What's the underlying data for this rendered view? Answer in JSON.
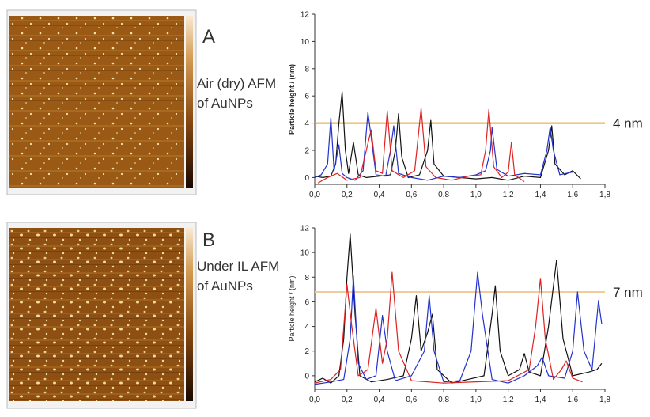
{
  "panels": [
    {
      "label": "A",
      "caption": [
        "Air (dry) AFM",
        "of AuNPs"
      ]
    },
    {
      "label": "B",
      "caption": [
        "Under IL AFM",
        "of AuNPs"
      ]
    }
  ],
  "chart_data": [
    {
      "type": "line",
      "y_label": "Particle height / (nm)",
      "xlim": [
        0,
        1.8
      ],
      "ylim": [
        -0.5,
        12
      ],
      "xticks": [
        {
          "value": 0,
          "label": "0,0"
        },
        {
          "value": 0.2,
          "label": "0,2"
        },
        {
          "value": 0.4,
          "label": "0,4"
        },
        {
          "value": 0.6,
          "label": "0,6"
        },
        {
          "value": 0.8,
          "label": "0,8"
        },
        {
          "value": 1.0,
          "label": "1,0"
        },
        {
          "value": 1.2,
          "label": "1,2"
        },
        {
          "value": 1.4,
          "label": "1,4"
        },
        {
          "value": 1.6,
          "label": "1,6"
        },
        {
          "value": 1.8,
          "label": "1,8"
        }
      ],
      "yticks": [
        0,
        2,
        4,
        6,
        8,
        10,
        12
      ],
      "reference_line": {
        "value": 4,
        "label": "4 nm",
        "color": "#e8a030"
      },
      "series": [
        {
          "color": "#111111",
          "x": [
            0,
            0.05,
            0.1,
            0.13,
            0.15,
            0.17,
            0.19,
            0.21,
            0.24,
            0.27,
            0.32,
            0.4,
            0.47,
            0.5,
            0.52,
            0.54,
            0.58,
            0.65,
            0.7,
            0.72,
            0.74,
            0.8,
            0.9,
            1.0,
            1.1,
            1.2,
            1.3,
            1.4,
            1.45,
            1.47,
            1.49,
            1.55,
            1.6,
            1.65
          ],
          "values": [
            0.1,
            0,
            0.1,
            1,
            4,
            6.3,
            2,
            0.3,
            2.6,
            0.2,
            0,
            0.1,
            0.2,
            2,
            4.7,
            1.5,
            0,
            0.2,
            2,
            4.2,
            1,
            0.1,
            0,
            -0.1,
            0,
            -0.2,
            0.1,
            0,
            2,
            3.8,
            1,
            0.2,
            0.5,
            -0.1
          ]
        },
        {
          "color": "#2233cc",
          "x": [
            0,
            0.04,
            0.08,
            0.1,
            0.12,
            0.15,
            0.17,
            0.2,
            0.25,
            0.3,
            0.33,
            0.35,
            0.38,
            0.44,
            0.47,
            0.49,
            0.52,
            0.6,
            0.7,
            0.8,
            0.9,
            1.0,
            1.06,
            1.09,
            1.1,
            1.13,
            1.2,
            1.3,
            1.4,
            1.44,
            1.46,
            1.48,
            1.52,
            1.6
          ],
          "values": [
            0,
            0.2,
            1,
            4.4,
            0.5,
            2.4,
            0.3,
            0,
            -0.2,
            0.5,
            4.8,
            3,
            0.2,
            0.1,
            2,
            3.8,
            0.3,
            0,
            -0.2,
            0.1,
            0,
            0.2,
            0.5,
            2,
            3.7,
            0.6,
            0.1,
            0.3,
            0.2,
            2,
            3.7,
            2,
            0.2,
            0.4
          ]
        },
        {
          "color": "#dd2222",
          "x": [
            0.02,
            0.08,
            0.14,
            0.2,
            0.28,
            0.32,
            0.35,
            0.38,
            0.42,
            0.45,
            0.48,
            0.55,
            0.62,
            0.66,
            0.69,
            0.75,
            0.85,
            0.95,
            1.03,
            1.06,
            1.08,
            1.11,
            1.16,
            1.2,
            1.22,
            1.24,
            1.3
          ],
          "values": [
            -0.4,
            0,
            0.3,
            -0.2,
            0,
            2,
            3.5,
            0.5,
            0.3,
            4.9,
            0.5,
            0,
            0.5,
            5.1,
            0.8,
            0,
            -0.2,
            0.1,
            0.2,
            2,
            5,
            0.8,
            0,
            0.4,
            2.6,
            0.2,
            -0.3
          ]
        }
      ]
    },
    {
      "type": "line",
      "y_label": "Particle height / (nm)",
      "xlim": [
        0,
        1.8
      ],
      "ylim": [
        -1.1,
        12
      ],
      "xticks": [
        {
          "value": 0,
          "label": "0,0"
        },
        {
          "value": 0.2,
          "label": "0,2"
        },
        {
          "value": 0.4,
          "label": "0,4"
        },
        {
          "value": 0.6,
          "label": "0,6"
        },
        {
          "value": 0.8,
          "label": "0,8"
        },
        {
          "value": 1.0,
          "label": "1,0"
        },
        {
          "value": 1.2,
          "label": "1,2"
        },
        {
          "value": 1.4,
          "label": "1,4"
        },
        {
          "value": 1.6,
          "label": "1,6"
        },
        {
          "value": 1.8,
          "label": "1,8"
        }
      ],
      "yticks": [
        0,
        2,
        4,
        6,
        8,
        10,
        12
      ],
      "reference_line": {
        "value": 6.8,
        "label": "7 nm",
        "color": "#f2cc9c"
      },
      "series": [
        {
          "color": "#111111",
          "x": [
            0,
            0.05,
            0.1,
            0.15,
            0.18,
            0.2,
            0.22,
            0.25,
            0.28,
            0.35,
            0.45,
            0.55,
            0.6,
            0.63,
            0.66,
            0.7,
            0.73,
            0.76,
            0.85,
            0.95,
            1.05,
            1.1,
            1.12,
            1.15,
            1.2,
            1.27,
            1.3,
            1.33,
            1.4,
            1.45,
            1.5,
            1.54,
            1.6,
            1.7,
            1.75,
            1.78
          ],
          "values": [
            -0.5,
            -0.2,
            -0.6,
            0,
            3,
            8,
            11.5,
            5,
            0,
            -0.5,
            -0.3,
            0,
            3,
            6.5,
            2,
            3.5,
            5,
            0.5,
            -0.6,
            -0.3,
            0,
            5,
            7.3,
            2,
            0,
            0.5,
            1.8,
            0.3,
            0,
            4,
            9.4,
            3,
            0,
            0.3,
            0.5,
            1
          ]
        },
        {
          "color": "#2233cc",
          "x": [
            0,
            0.1,
            0.18,
            0.22,
            0.24,
            0.27,
            0.32,
            0.38,
            0.42,
            0.45,
            0.5,
            0.6,
            0.68,
            0.71,
            0.74,
            0.8,
            0.9,
            0.97,
            1.01,
            1.04,
            1.1,
            1.2,
            1.3,
            1.38,
            1.41,
            1.45,
            1.55,
            1.6,
            1.63,
            1.67,
            1.72,
            1.76,
            1.78
          ],
          "values": [
            -0.7,
            -0.5,
            -0.3,
            3,
            8.1,
            1,
            -0.3,
            0,
            4.9,
            2,
            -0.4,
            0,
            2,
            6.5,
            2,
            -0.5,
            -0.4,
            2,
            8.4,
            5,
            -0.3,
            -0.6,
            0,
            0.8,
            1.5,
            0,
            -0.2,
            2,
            6.8,
            2,
            0.5,
            6.1,
            4.2
          ]
        },
        {
          "color": "#dd2222",
          "x": [
            0,
            0.1,
            0.16,
            0.2,
            0.23,
            0.27,
            0.33,
            0.38,
            0.42,
            0.45,
            0.48,
            0.52,
            0.6,
            0.8,
            1.0,
            1.2,
            1.33,
            1.37,
            1.4,
            1.43,
            1.48,
            1.53,
            1.56,
            1.6,
            1.66
          ],
          "values": [
            -0.6,
            -0.3,
            0.5,
            7.4,
            4,
            0,
            0.5,
            5.5,
            1,
            3,
            8.4,
            2,
            -0.4,
            -0.6,
            -0.5,
            -0.4,
            0.5,
            4,
            7.9,
            3,
            -0.3,
            0.5,
            1.2,
            -0.2,
            -0.5
          ]
        }
      ]
    }
  ]
}
